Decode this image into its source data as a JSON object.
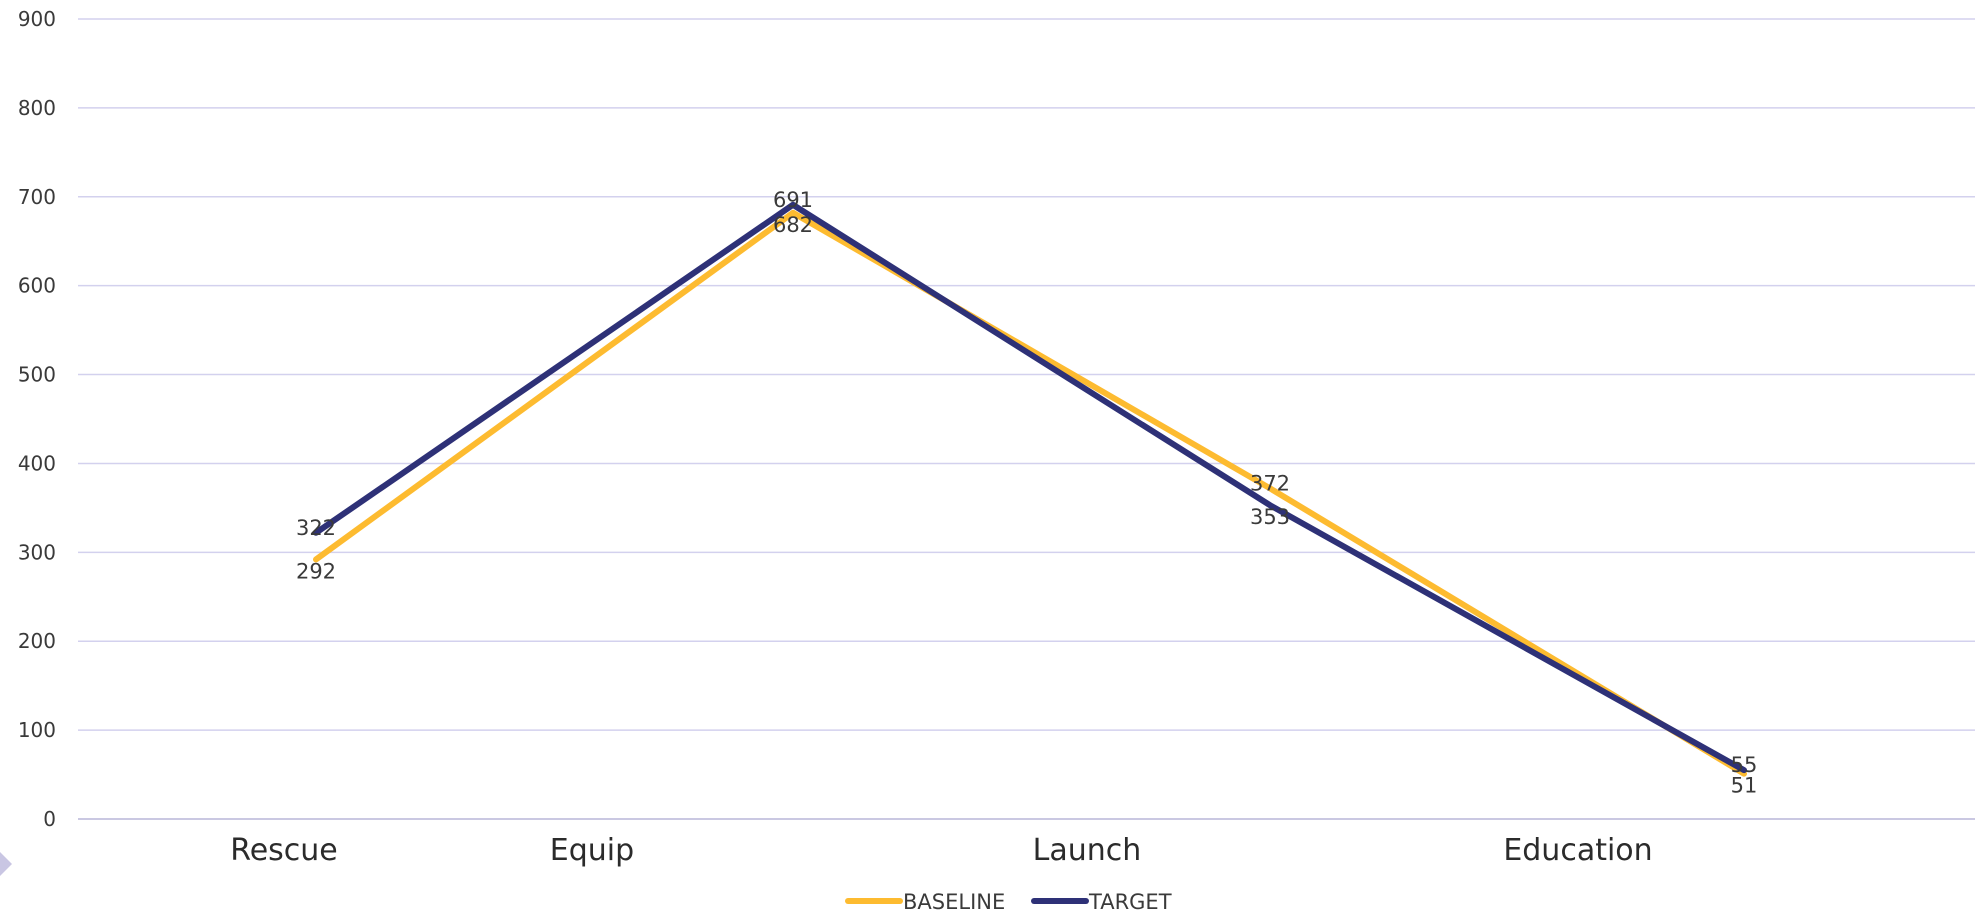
{
  "chart_data": {
    "type": "line",
    "categories": [
      "Rescue",
      "Equip",
      "Launch",
      "Education"
    ],
    "y_ticks": [
      "0",
      "100",
      "200",
      "300",
      "400",
      "500",
      "600",
      "700",
      "800",
      "900"
    ],
    "ylim": [
      0,
      900
    ],
    "grid": true,
    "legend_position": "bottom",
    "series": [
      {
        "name": "BASELINE",
        "color": "#FDBB30",
        "values": [
          292,
          682,
          372,
          51
        ]
      },
      {
        "name": "TARGET",
        "color": "#2E3177",
        "values": [
          322,
          691,
          353,
          55
        ]
      }
    ]
  }
}
